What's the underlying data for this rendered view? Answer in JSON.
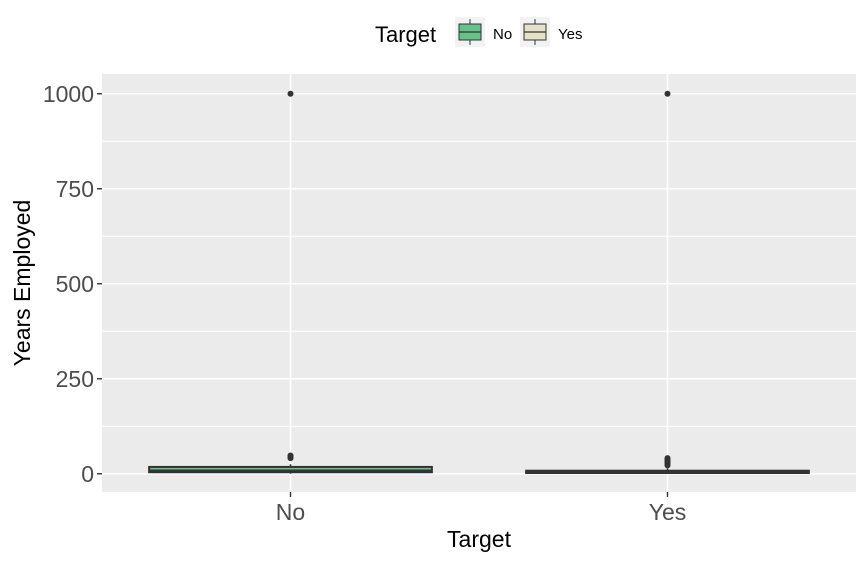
{
  "chart_data": {
    "type": "boxplot",
    "xlabel": "Target",
    "ylabel": "Years Employed",
    "categories": [
      "No",
      "Yes"
    ],
    "y_ticks": [
      0,
      250,
      500,
      750,
      1000
    ],
    "ylim": [
      -48,
      1052
    ],
    "grid": true,
    "legend": {
      "title": "Target",
      "placement": "top",
      "entries": [
        {
          "label": "No",
          "color": "#66c28a"
        },
        {
          "label": "Yes",
          "color": "#e5e2c9"
        }
      ]
    },
    "boxes": [
      {
        "category": "No",
        "fill": "#66c28a",
        "q1": 4,
        "median": 7,
        "q3": 18,
        "whisker_low": 0,
        "whisker_high": 25,
        "outliers": [
          41,
          44,
          46,
          48,
          1000
        ]
      },
      {
        "category": "Yes",
        "fill": "#e5e2c9",
        "q1": 2,
        "median": 4,
        "q3": 8,
        "whisker_low": 0,
        "whisker_high": 14,
        "outliers": [
          22,
          26,
          29,
          32,
          35,
          38,
          41,
          1000
        ]
      }
    ]
  },
  "colors": {
    "panel_bg": "#ebebeb",
    "grid": "#ffffff",
    "box_outline": "#333333",
    "outlier": "#333333",
    "axis_text": "#4d4d4d",
    "title_text": "#000000"
  }
}
